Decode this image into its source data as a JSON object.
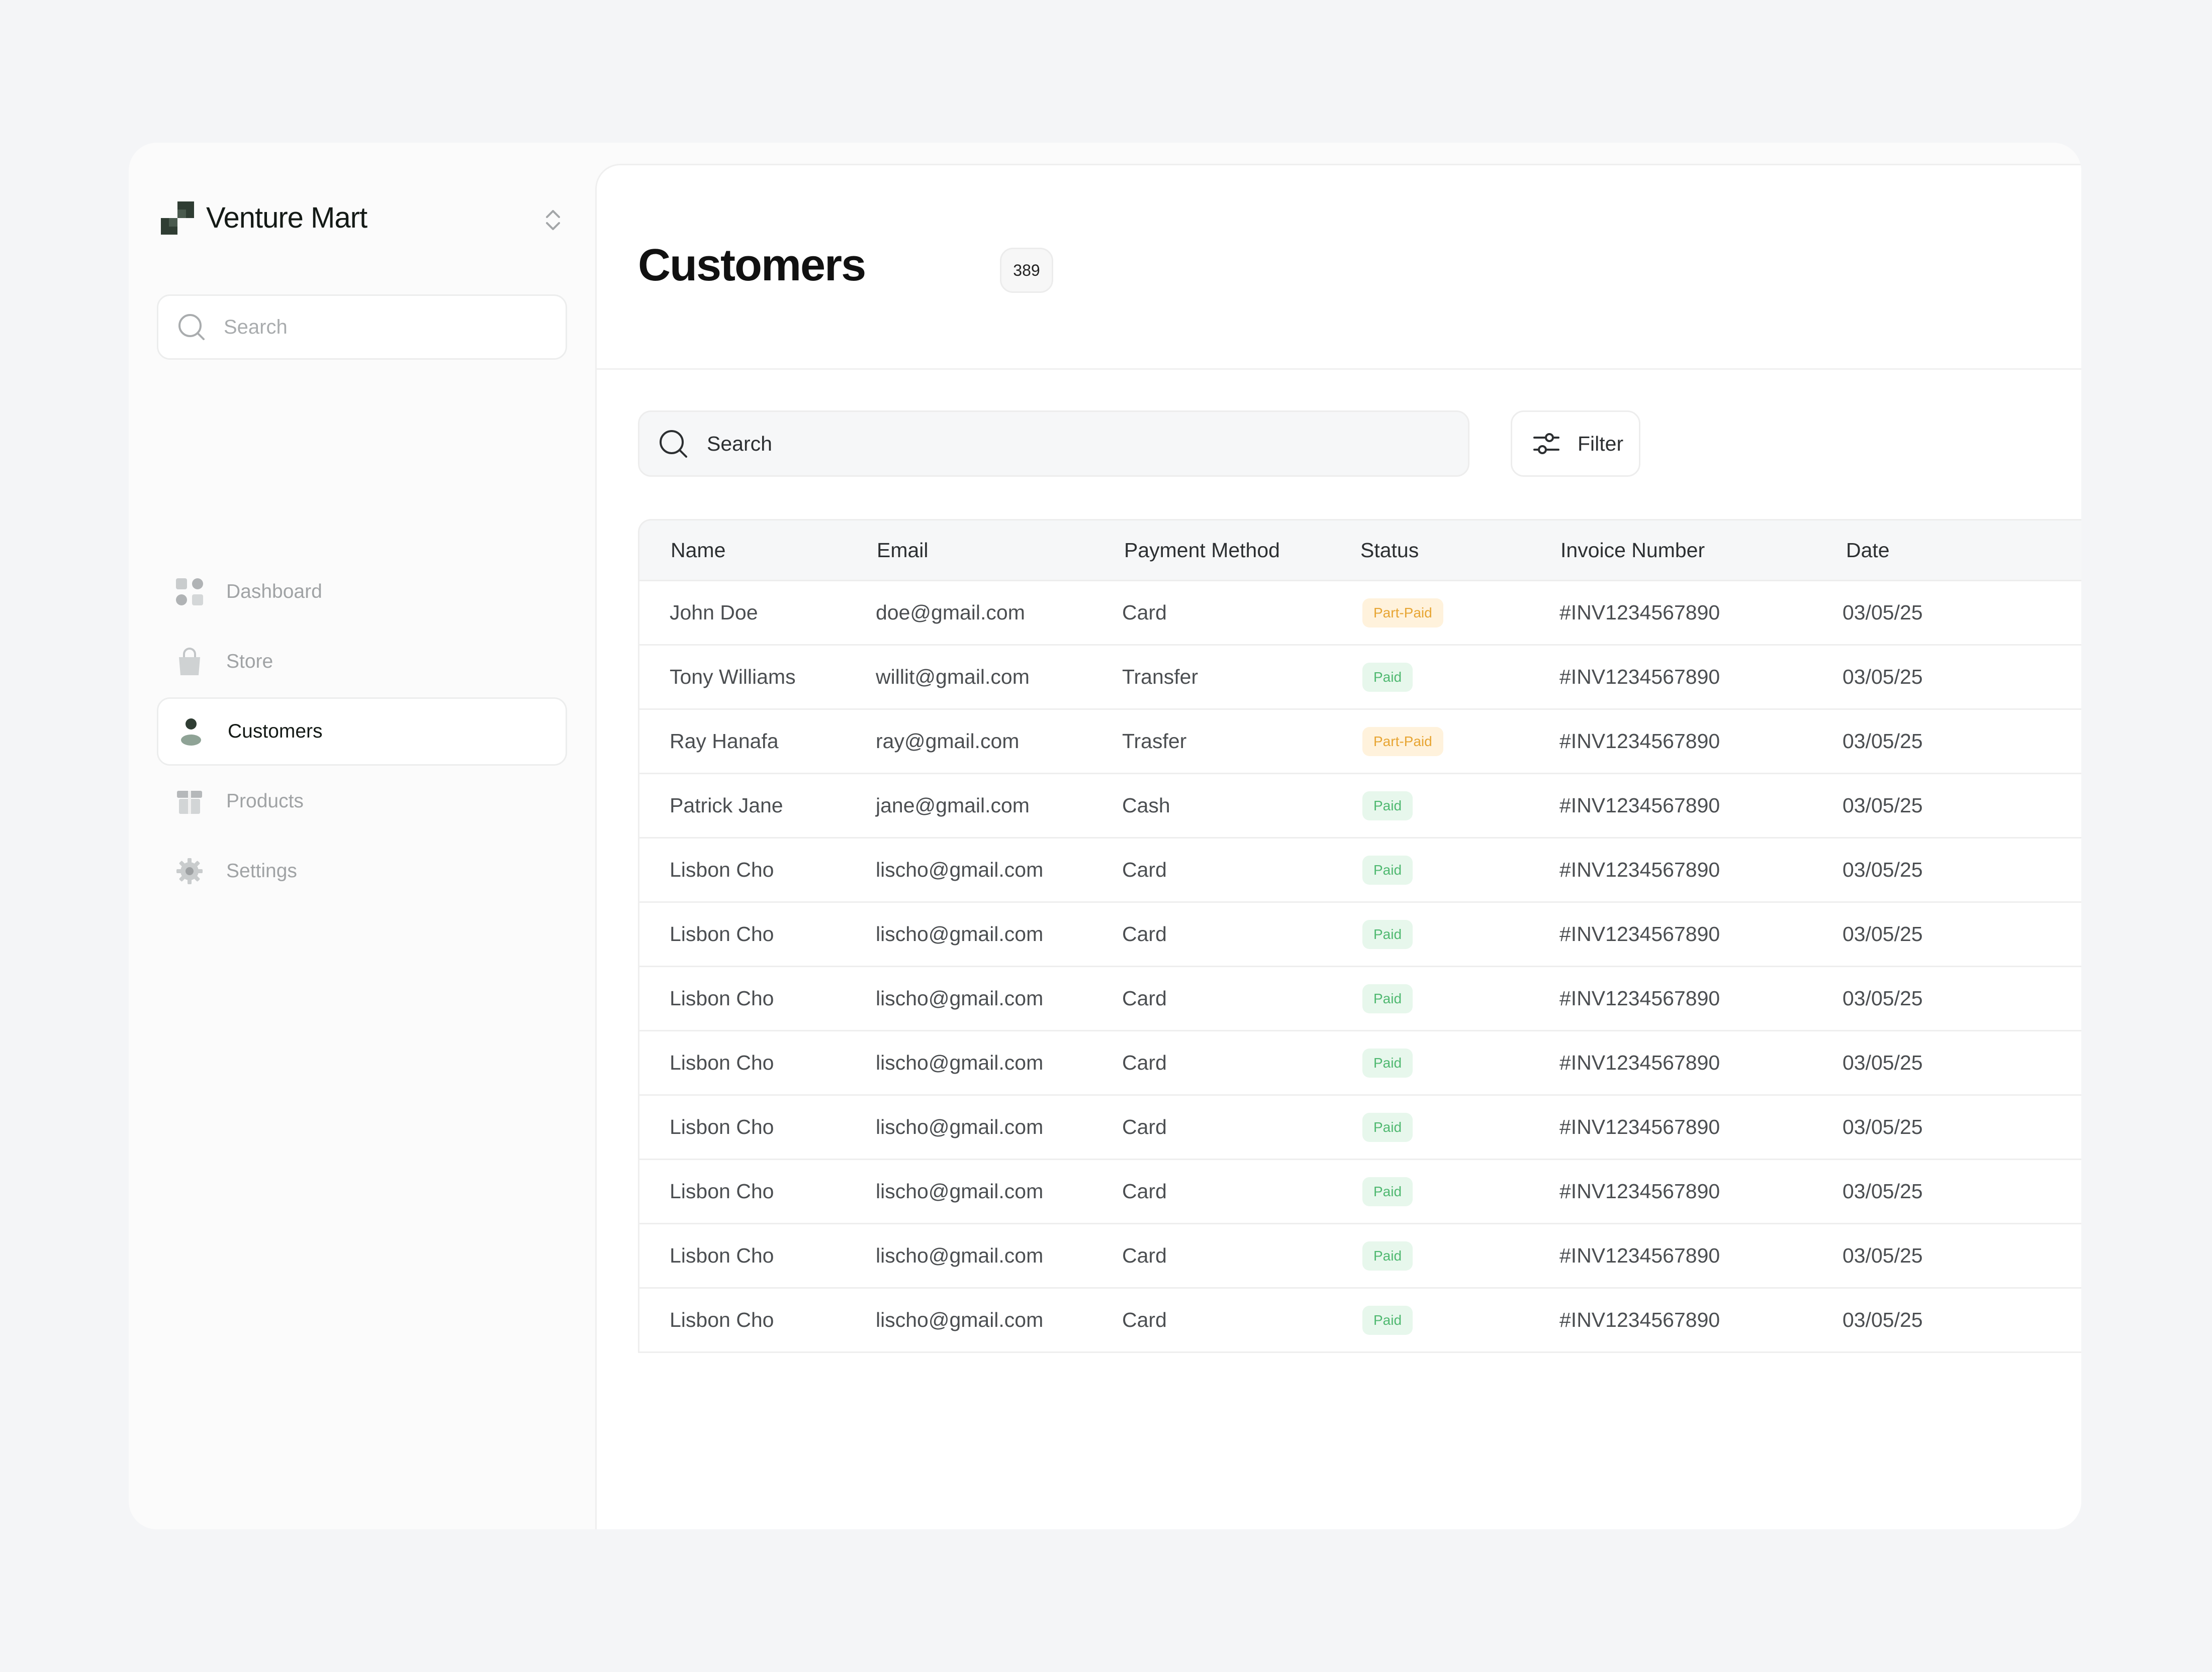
{
  "sidebar": {
    "brand": "Venture Mart",
    "search_placeholder": "Search",
    "items": [
      {
        "label": "Dashboard",
        "icon": "grid-icon",
        "active": false
      },
      {
        "label": "Store",
        "icon": "shopping-bag-icon",
        "active": false
      },
      {
        "label": "Customers",
        "icon": "user-icon",
        "active": true
      },
      {
        "label": "Products",
        "icon": "gift-box-icon",
        "active": false
      },
      {
        "label": "Settings",
        "icon": "gear-icon",
        "active": false
      }
    ]
  },
  "main": {
    "title": "Customers",
    "count": "389",
    "search_placeholder": "Search",
    "filter_label": "Filter"
  },
  "table": {
    "columns": [
      "Name",
      "Email",
      "Payment Method",
      "Status",
      "Invoice Number",
      "Date"
    ],
    "rows": [
      {
        "name": "John Doe",
        "email": "doe@gmail.com",
        "payment": "Card",
        "status": "Part-Paid",
        "invoice": "#INV1234567890",
        "date": "03/05/25"
      },
      {
        "name": "Tony Williams",
        "email": "willit@gmail.com",
        "payment": "Transfer",
        "status": "Paid",
        "invoice": "#INV1234567890",
        "date": "03/05/25"
      },
      {
        "name": "Ray Hanafa",
        "email": "ray@gmail.com",
        "payment": "Trasfer",
        "status": "Part-Paid",
        "invoice": "#INV1234567890",
        "date": "03/05/25"
      },
      {
        "name": "Patrick Jane",
        "email": "jane@gmail.com",
        "payment": "Cash",
        "status": "Paid",
        "invoice": "#INV1234567890",
        "date": "03/05/25"
      },
      {
        "name": "Lisbon Cho",
        "email": "lischo@gmail.com",
        "payment": "Card",
        "status": "Paid",
        "invoice": "#INV1234567890",
        "date": "03/05/25"
      },
      {
        "name": "Lisbon Cho",
        "email": "lischo@gmail.com",
        "payment": "Card",
        "status": "Paid",
        "invoice": "#INV1234567890",
        "date": "03/05/25"
      },
      {
        "name": "Lisbon Cho",
        "email": "lischo@gmail.com",
        "payment": "Card",
        "status": "Paid",
        "invoice": "#INV1234567890",
        "date": "03/05/25"
      },
      {
        "name": "Lisbon Cho",
        "email": "lischo@gmail.com",
        "payment": "Card",
        "status": "Paid",
        "invoice": "#INV1234567890",
        "date": "03/05/25"
      },
      {
        "name": "Lisbon Cho",
        "email": "lischo@gmail.com",
        "payment": "Card",
        "status": "Paid",
        "invoice": "#INV1234567890",
        "date": "03/05/25"
      },
      {
        "name": "Lisbon Cho",
        "email": "lischo@gmail.com",
        "payment": "Card",
        "status": "Paid",
        "invoice": "#INV1234567890",
        "date": "03/05/25"
      },
      {
        "name": "Lisbon Cho",
        "email": "lischo@gmail.com",
        "payment": "Card",
        "status": "Paid",
        "invoice": "#INV1234567890",
        "date": "03/05/25"
      },
      {
        "name": "Lisbon Cho",
        "email": "lischo@gmail.com",
        "payment": "Card",
        "status": "Paid",
        "invoice": "#INV1234567890",
        "date": "03/05/25"
      }
    ]
  },
  "colors": {
    "brand": "#2f3d33",
    "paid_bg": "#e7f7ec",
    "paid_text": "#4fb870",
    "part_bg": "#fff2dc",
    "part_text": "#e7a533"
  }
}
